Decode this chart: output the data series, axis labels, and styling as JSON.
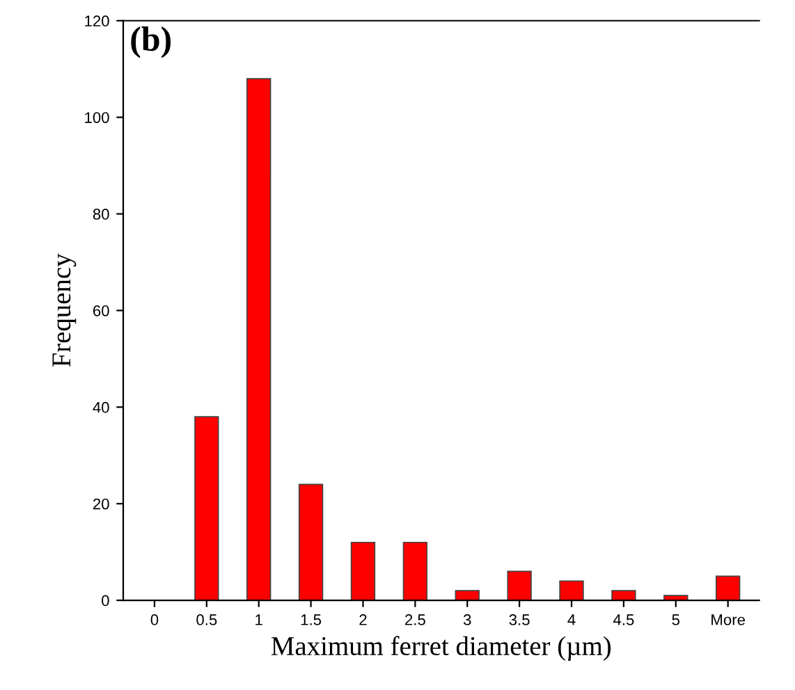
{
  "chart_data": {
    "type": "bar",
    "categories": [
      "0",
      "0.5",
      "1",
      "1.5",
      "2",
      "2.5",
      "3",
      "3.5",
      "4",
      "4.5",
      "5",
      "More"
    ],
    "values": [
      0,
      38,
      108,
      24,
      12,
      12,
      2,
      6,
      4,
      2,
      1,
      5
    ],
    "color": "#ff0000",
    "xlabel": "Maximum ferret diameter (µm)",
    "ylabel": "Frequency",
    "ylim": [
      0,
      120
    ],
    "yticks": [
      0,
      20,
      40,
      60,
      80,
      100,
      120
    ],
    "annotations": [
      "(b)"
    ],
    "grid": false,
    "legend": false
  }
}
